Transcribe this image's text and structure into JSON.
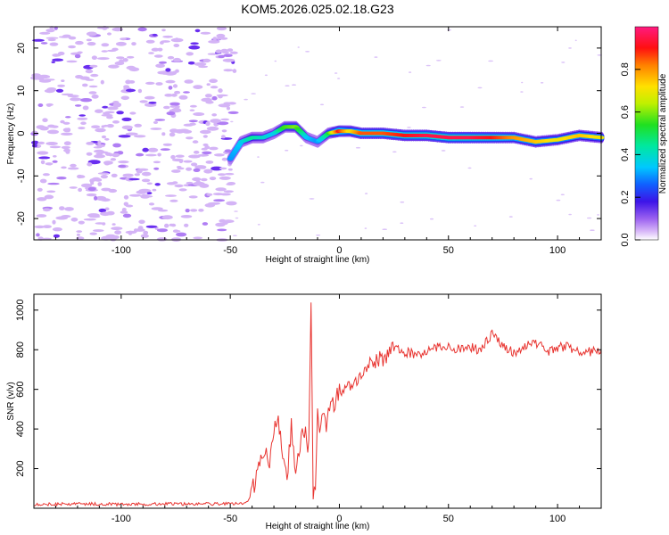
{
  "title": "KOM5.2026.025.02.18.G23",
  "chart_data": [
    {
      "type": "heatmap",
      "name": "spectrogram",
      "xlabel": "Height of straight line (km)",
      "ylabel": "Frequency (Hz)",
      "xlim": [
        -140,
        120
      ],
      "ylim": [
        -25,
        25
      ],
      "xticks": [
        -100,
        -50,
        0,
        50,
        100
      ],
      "yticks": [
        -20,
        -10,
        0,
        10,
        20
      ],
      "colorbar": {
        "label": "Normalized spectral amplitude",
        "range": [
          0,
          1
        ],
        "ticks": [
          "0.0",
          "0.2",
          "0.4",
          "0.6",
          "0.8"
        ]
      },
      "signal_track": [
        {
          "x": -50,
          "y": -6,
          "amp": 0.3
        },
        {
          "x": -45,
          "y": -2,
          "amp": 0.35
        },
        {
          "x": -40,
          "y": -1,
          "amp": 0.45
        },
        {
          "x": -35,
          "y": -1,
          "amp": 0.4
        },
        {
          "x": -30,
          "y": 0,
          "amp": 0.35
        },
        {
          "x": -25,
          "y": 1.5,
          "amp": 0.55
        },
        {
          "x": -20,
          "y": 1.5,
          "amp": 0.6
        },
        {
          "x": -15,
          "y": -1,
          "amp": 0.35
        },
        {
          "x": -10,
          "y": -2,
          "amp": 0.3
        },
        {
          "x": -5,
          "y": 0,
          "amp": 0.5
        },
        {
          "x": 0,
          "y": 0.5,
          "amp": 0.9
        },
        {
          "x": 5,
          "y": 0.5,
          "amp": 0.7
        },
        {
          "x": 10,
          "y": 0,
          "amp": 0.85
        },
        {
          "x": 20,
          "y": 0,
          "amp": 0.85
        },
        {
          "x": 30,
          "y": -0.5,
          "amp": 0.9
        },
        {
          "x": 40,
          "y": -0.5,
          "amp": 0.95
        },
        {
          "x": 50,
          "y": -1,
          "amp": 0.95
        },
        {
          "x": 60,
          "y": -1,
          "amp": 0.95
        },
        {
          "x": 70,
          "y": -1,
          "amp": 0.9
        },
        {
          "x": 80,
          "y": -1,
          "amp": 0.8
        },
        {
          "x": 90,
          "y": -2,
          "amp": 0.75
        },
        {
          "x": 100,
          "y": -1.5,
          "amp": 0.7
        },
        {
          "x": 110,
          "y": -0.5,
          "amp": 0.75
        },
        {
          "x": 120,
          "y": -1,
          "amp": 0.7
        }
      ]
    },
    {
      "type": "line",
      "name": "snr",
      "xlabel": "Height of straight line (km)",
      "ylabel": "SNR (v/v)",
      "xlim": [
        -140,
        120
      ],
      "ylim": [
        0,
        1080
      ],
      "xticks": [
        -100,
        -50,
        0,
        50,
        100
      ],
      "yticks": [
        200,
        400,
        600,
        800,
        1000
      ],
      "color": "#e8332f",
      "x": [
        -140,
        -120,
        -100,
        -80,
        -60,
        -45,
        -42,
        -40,
        -38,
        -36,
        -34,
        -32,
        -30,
        -28,
        -26,
        -24,
        -22,
        -20,
        -18,
        -16,
        -14,
        -13,
        -12,
        -11,
        -10,
        -9,
        -8,
        -6,
        -4,
        -2,
        0,
        5,
        10,
        15,
        20,
        25,
        30,
        35,
        40,
        45,
        50,
        55,
        60,
        65,
        70,
        75,
        80,
        85,
        90,
        95,
        100,
        105,
        110,
        115,
        120
      ],
      "y": [
        20,
        22,
        20,
        22,
        22,
        22,
        30,
        90,
        150,
        250,
        310,
        200,
        380,
        460,
        260,
        150,
        420,
        160,
        320,
        400,
        300,
        1080,
        50,
        120,
        460,
        360,
        480,
        420,
        520,
        530,
        600,
        640,
        660,
        730,
        760,
        800,
        790,
        780,
        790,
        810,
        820,
        800,
        810,
        800,
        880,
        820,
        780,
        820,
        840,
        790,
        810,
        820,
        780,
        790,
        800
      ]
    }
  ]
}
